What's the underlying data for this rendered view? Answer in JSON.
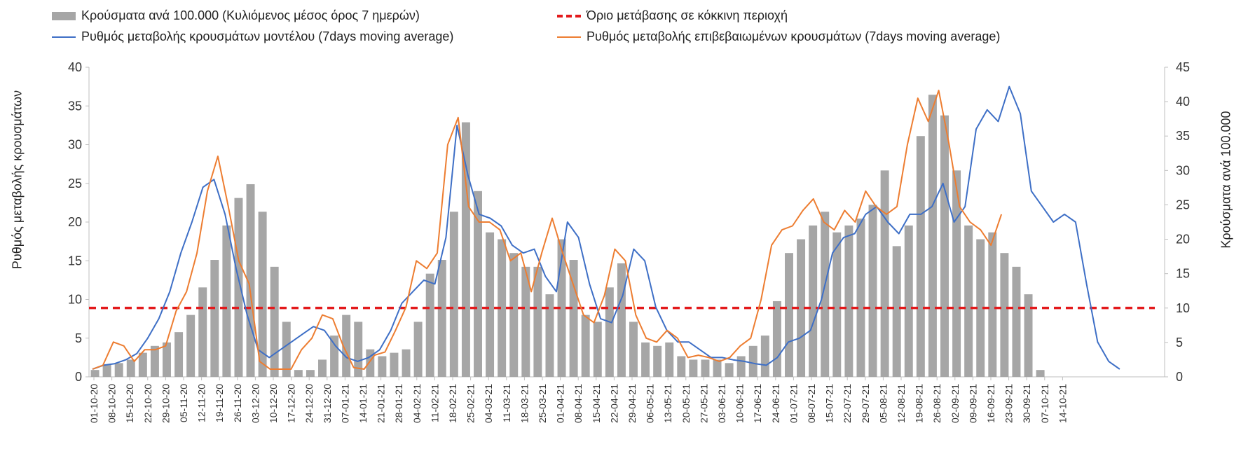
{
  "chart_data": {
    "type": "bar+line",
    "title": "",
    "ylabel": "Ρυθμός μεταβολής κρουσμάτων",
    "y2label": "Κρούσματα ανά 100.000",
    "ylim": [
      0,
      40
    ],
    "y2lim": [
      0,
      45
    ],
    "yticks": [
      "0",
      "5",
      "10",
      "15",
      "20",
      "25",
      "30",
      "35",
      "40"
    ],
    "y2ticks": [
      "0",
      "5",
      "10",
      "15",
      "20",
      "25",
      "30",
      "35",
      "40",
      "45"
    ],
    "legend": {
      "bars": "Κρούσματα ανά 100.000 (Κυλιόμενος μέσος όρος 7 ημερών)",
      "threshold": "Όριο μετάβασης σε κόκκινη περιοχή",
      "model": "Ρυθμός μεταβολής κρουσμάτων μοντέλου (7days moving average)",
      "confirmed": "Ρυθμός μεταβολής επιβεβαιωμένων κρουσμάτων (7days moving average)"
    },
    "legend_position": "top",
    "grid": false,
    "x_tick_labels": [
      "01-10-20",
      "08-10-20",
      "15-10-20",
      "22-10-20",
      "29-10-20",
      "05-11-20",
      "12-11-20",
      "19-11-20",
      "26-11-20",
      "03-12-20",
      "10-12-20",
      "17-12-20",
      "24-12-20",
      "31-12-20",
      "07-01-21",
      "14-01-21",
      "21-01-21",
      "28-01-21",
      "04-02-21",
      "11-02-21",
      "18-02-21",
      "25-02-21",
      "04-03-21",
      "11-03-21",
      "18-03-21",
      "25-03-21",
      "01-04-21",
      "08-04-21",
      "15-04-21",
      "22-04-21",
      "29-04-21",
      "06-05-21",
      "13-05-21",
      "20-05-21",
      "27-05-21",
      "03-06-21",
      "10-06-21",
      "17-06-21",
      "24-06-21",
      "01-07-21",
      "08-07-21",
      "15-07-21",
      "22-07-21",
      "29-07-21",
      "05-08-21",
      "12-08-21",
      "19-08-21",
      "26-08-21",
      "02-09-21",
      "09-09-21",
      "16-09-21",
      "23-09-21",
      "30-09-21",
      "07-10-21",
      "14-10-21"
    ],
    "threshold_y1": 8.9,
    "series": [
      {
        "name": "Κρούσματα ανά 100.000 (Κυλιόμενος μέσος όρος 7 ημερών)",
        "axis": "right",
        "type": "bar",
        "color": "#a6a6a6",
        "values": [
          1.0,
          1.8,
          2.0,
          2.5,
          3.5,
          4.5,
          5.0,
          6.5,
          9.0,
          13.0,
          17.0,
          22.0,
          26.0,
          28.0,
          24.0,
          16.0,
          8.0,
          1.0,
          1.0,
          2.5,
          6.0,
          9.0,
          8.0,
          4.0,
          3.0,
          3.5,
          4.0,
          8.0,
          15.0,
          17.0,
          24.0,
          37.0,
          27.0,
          21.0,
          20.0,
          18.0,
          16.0,
          16.0,
          12.0,
          20.0,
          17.0,
          9.0,
          8.0,
          13.0,
          16.5,
          8.0,
          5.0,
          4.5,
          5.0,
          3.0,
          2.5,
          2.5,
          2.5,
          2.0,
          3.0,
          4.5,
          6.0,
          11.0,
          18.0,
          20.0,
          22.0,
          24.0,
          21.0,
          22.0,
          23.0,
          25.0,
          30.0,
          19.0,
          22.0,
          35.0,
          41.0,
          38.0,
          30.0,
          22.0,
          20.0,
          21.0,
          18.0,
          16.0,
          12.0,
          1.0
        ]
      },
      {
        "name": "Ρυθμός μεταβολής κρουσμάτων μοντέλου (7days moving average)",
        "axis": "left",
        "type": "line",
        "color": "#3e6fc6",
        "values": [
          1.0,
          1.5,
          1.7,
          2.2,
          3.0,
          5.0,
          7.5,
          11.0,
          16.0,
          20.0,
          24.5,
          25.5,
          21.0,
          14.0,
          8.0,
          3.5,
          2.5,
          3.5,
          4.5,
          5.5,
          6.5,
          6.0,
          4.0,
          2.5,
          2.0,
          2.5,
          3.5,
          6.0,
          9.5,
          11.0,
          12.5,
          12.0,
          18.0,
          32.5,
          26.0,
          21.0,
          20.5,
          19.5,
          17.0,
          16.0,
          16.5,
          13.0,
          11.0,
          20.0,
          18.0,
          12.0,
          7.5,
          7.0,
          10.5,
          16.5,
          15.0,
          9.0,
          6.0,
          4.5,
          4.5,
          3.5,
          2.5,
          2.5,
          2.2,
          2.0,
          1.7,
          1.5,
          2.5,
          4.5,
          5.0,
          6.0,
          10.0,
          16.0,
          18.0,
          18.5,
          21.0,
          22.0,
          20.0,
          18.5,
          21.0,
          21.0,
          22.0,
          25.0,
          20.0,
          22.0,
          32.0,
          34.5,
          33.0,
          37.5,
          34.0,
          24.0,
          22.0,
          20.0,
          21.0,
          20.0,
          12.0,
          4.5,
          2.0,
          1.0
        ]
      },
      {
        "name": "Ρυθμός μεταβολής επιβεβαιωμένων κρουσμάτων (7days moving average)",
        "axis": "left",
        "type": "line",
        "color": "#ed7d31",
        "values": [
          1.0,
          1.5,
          4.5,
          4.0,
          2.0,
          3.5,
          3.5,
          4.0,
          8.5,
          11.0,
          16.0,
          24.0,
          28.5,
          22.0,
          15.0,
          12.0,
          2.0,
          1.0,
          1.0,
          1.0,
          3.5,
          5.0,
          8.0,
          7.5,
          4.0,
          1.2,
          1.0,
          2.8,
          3.2,
          6.0,
          9.0,
          15.0,
          14.0,
          16.0,
          30.0,
          33.5,
          22.0,
          20.0,
          20.0,
          19.0,
          15.0,
          16.0,
          11.0,
          16.0,
          20.5,
          16.0,
          12.0,
          8.0,
          7.0,
          10.5,
          16.5,
          15.0,
          8.0,
          5.0,
          4.5,
          6.0,
          5.0,
          2.5,
          2.8,
          2.5,
          2.0,
          2.5,
          4.0,
          5.0,
          10.0,
          17.0,
          19.0,
          19.5,
          21.5,
          23.0,
          20.0,
          19.0,
          21.5,
          20.0,
          24.0,
          22.0,
          21.0,
          22.0,
          30.0,
          36.0,
          33.0,
          37.0,
          30.0,
          22.0,
          20.0,
          19.0,
          17.0,
          21.0
        ]
      }
    ]
  }
}
